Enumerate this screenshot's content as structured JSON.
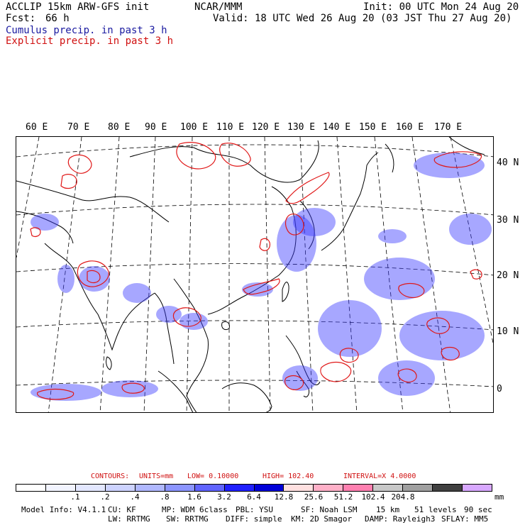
{
  "header": {
    "model": "ACCLIP 15km ARW-GFS init",
    "fcst_label": "Fcst:",
    "fcst_value": "66 h",
    "center": "NCAR/MMM",
    "init": "Init: 00 UTC Mon 24 Aug 20",
    "valid": "Valid: 18 UTC Wed 26 Aug 20 (03 JST Thu 27 Aug 20)",
    "line_cumulus": "Cumulus precip. in past 3 h",
    "line_explicit": "Explicit precip. in past 3 h"
  },
  "map": {
    "lon_labels": [
      "60 E",
      "70 E",
      "80 E",
      "90 E",
      "100 E",
      "110 E",
      "120 E",
      "130 E",
      "140 E",
      "150 E",
      "160 E",
      "170 E"
    ],
    "lat_labels": [
      "40 N",
      "30 N",
      "20 N",
      "10 N",
      "0"
    ],
    "colors": {
      "coast": "#000000",
      "grid": "#000000",
      "explicit_contour": "#e01818",
      "cumulus_shade": "#3b3bff"
    }
  },
  "legend": {
    "contours": {
      "prefix": "CONTOURS:",
      "units": "UNITS=mm",
      "low": "LOW= 0.10000",
      "high": "HIGH= 102.40",
      "interval": "INTERVAL=X 4.0000"
    },
    "colorbar_colors": [
      "#ffffff",
      "#f2f4ff",
      "#e3e7ff",
      "#cdd3ff",
      "#b0b8ff",
      "#8c95ff",
      "#6064ff",
      "#2020ff",
      "#0000d8",
      "#ffe0e0",
      "#ffb0c8",
      "#ff80b0",
      "#c8c8c8",
      "#a0a0a0",
      "#404040",
      "#d8a8ff"
    ],
    "colorbar_labels": [
      ".1",
      ".2",
      ".4",
      ".8",
      "1.6",
      "3.2",
      "6.4",
      "12.8",
      "25.6",
      "51.2",
      "102.4",
      "204.8"
    ],
    "units": "mm"
  },
  "footer": {
    "line1": [
      "Model Info: V4.1.1",
      "CU: KF",
      "MP: WDM 6class",
      "PBL: YSU",
      "SF: Noah LSM",
      "15 km",
      "51 levels",
      "90 sec"
    ],
    "line2": [
      "LW: RRTMG",
      "SW: RRTMG",
      "DIFF: simple",
      "KM: 2D Smagor",
      "DAMP: Rayleigh3",
      "SFLAY: MM5"
    ]
  }
}
